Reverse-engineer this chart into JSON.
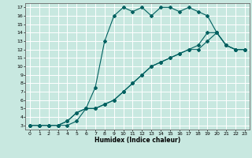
{
  "title": "",
  "xlabel": "Humidex (Indice chaleur)",
  "xlim": [
    -0.5,
    23.5
  ],
  "ylim": [
    2.5,
    17.5
  ],
  "xticks": [
    0,
    1,
    2,
    3,
    4,
    5,
    6,
    7,
    8,
    9,
    10,
    11,
    12,
    13,
    14,
    15,
    16,
    17,
    18,
    19,
    20,
    21,
    22,
    23
  ],
  "yticks": [
    3,
    4,
    5,
    6,
    7,
    8,
    9,
    10,
    11,
    12,
    13,
    14,
    15,
    16,
    17
  ],
  "background_color": "#c8e8e0",
  "grid_color": "#ffffff",
  "line_color": "#006060",
  "line1_x": [
    0,
    1,
    2,
    3,
    4,
    5,
    6,
    7,
    8,
    9,
    10,
    11,
    12,
    13,
    14,
    15,
    16,
    17,
    18,
    19,
    20,
    21,
    22,
    23
  ],
  "line1_y": [
    3,
    3,
    3,
    3,
    3,
    3.5,
    5,
    7.5,
    13,
    16,
    17,
    16.5,
    17,
    16,
    17,
    17,
    16.5,
    17,
    16.5,
    16,
    14,
    12.5,
    12,
    12
  ],
  "line2_x": [
    0,
    1,
    2,
    3,
    4,
    5,
    6,
    7,
    8,
    9,
    10,
    11,
    12,
    13,
    14,
    15,
    16,
    17,
    18,
    19,
    20,
    21,
    22,
    23
  ],
  "line2_y": [
    3,
    3,
    3,
    3,
    3.5,
    4.5,
    5,
    5,
    5.5,
    6,
    7,
    8,
    9,
    10,
    10.5,
    11,
    11.5,
    12,
    12.5,
    14,
    14,
    12.5,
    12,
    12
  ],
  "line3_x": [
    0,
    1,
    2,
    3,
    4,
    5,
    6,
    7,
    8,
    9,
    10,
    11,
    12,
    13,
    14,
    15,
    16,
    17,
    18,
    19,
    20,
    21,
    22,
    23
  ],
  "line3_y": [
    3,
    3,
    3,
    3,
    3.5,
    4.5,
    5,
    5,
    5.5,
    6,
    7,
    8,
    9,
    10,
    10.5,
    11,
    11.5,
    12,
    12,
    13,
    14,
    12.5,
    12,
    12
  ]
}
